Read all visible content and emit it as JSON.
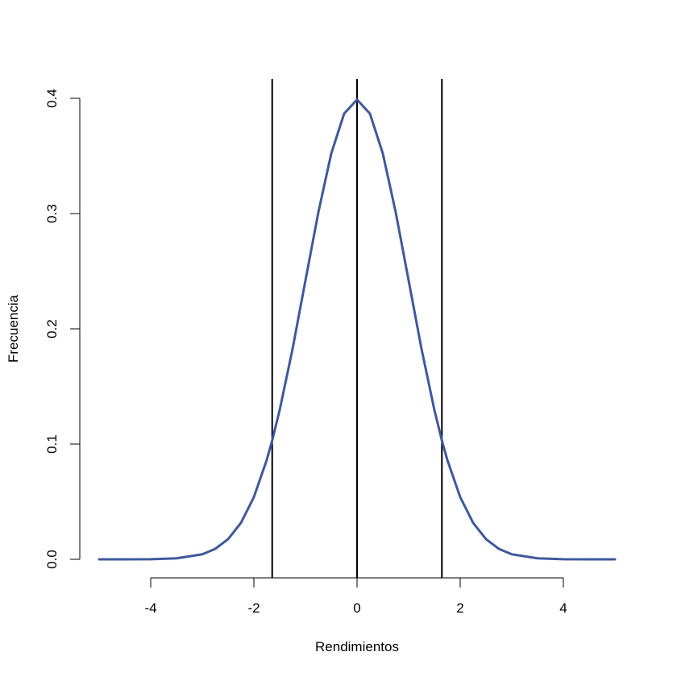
{
  "chart_data": {
    "type": "line",
    "title": "",
    "xlabel": "Rendimientos",
    "ylabel": "Frecuencia",
    "xlim": [
      -5,
      5
    ],
    "ylim": [
      0,
      0.4
    ],
    "x_ticks": [
      -4,
      -2,
      0,
      2,
      4
    ],
    "x_tick_labels": [
      "-4",
      "-2",
      "0",
      "2",
      "4"
    ],
    "y_ticks": [
      0,
      0.1,
      0.2,
      0.3,
      0.4
    ],
    "y_tick_labels": [
      "0.0",
      "0.1",
      "0.2",
      "0.3",
      "0.4"
    ],
    "grid": false,
    "series": [
      {
        "color": "#3e5a9b",
        "x": [
          -5.0,
          -4.5,
          -4.0,
          -3.5,
          -3.0,
          -2.75,
          -2.5,
          -2.25,
          -2.0,
          -1.75,
          -1.645,
          -1.5,
          -1.25,
          -1.0,
          -0.75,
          -0.5,
          -0.25,
          0.0,
          0.25,
          0.5,
          0.75,
          1.0,
          1.25,
          1.5,
          1.645,
          1.75,
          2.0,
          2.25,
          2.5,
          2.75,
          3.0,
          3.5,
          4.0,
          4.5,
          5.0
        ],
        "y": [
          0.0,
          0.0,
          0.0001,
          0.0009,
          0.0044,
          0.0091,
          0.0175,
          0.0317,
          0.054,
          0.0863,
          0.1031,
          0.1295,
          0.1826,
          0.242,
          0.3011,
          0.3521,
          0.3867,
          0.3989,
          0.3867,
          0.3521,
          0.3011,
          0.242,
          0.1826,
          0.1295,
          0.1031,
          0.0863,
          0.054,
          0.0317,
          0.0175,
          0.0091,
          0.0044,
          0.0009,
          0.0001,
          0.0,
          0.0
        ]
      }
    ],
    "vertical_lines": [
      {
        "x": -1.645,
        "color": "#000000"
      },
      {
        "x": 0,
        "color": "#000000"
      },
      {
        "x": 1.645,
        "color": "#000000"
      }
    ]
  }
}
